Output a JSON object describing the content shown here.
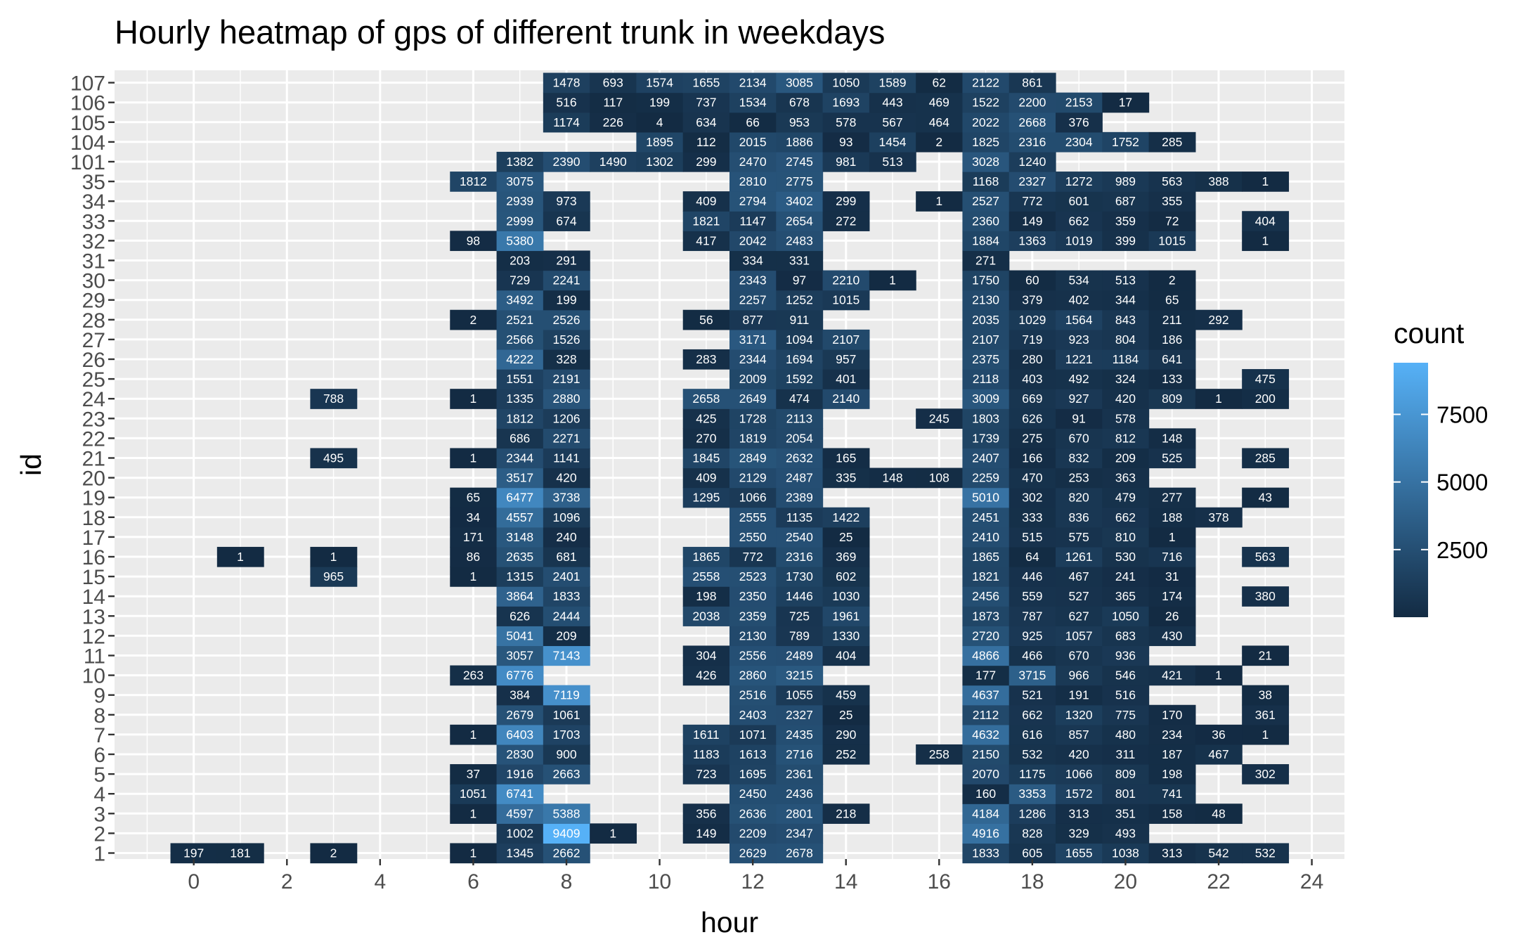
{
  "chart_data": {
    "type": "heatmap",
    "title": "Hourly heatmap of gps of different trunk in weekdays",
    "xlabel": "hour",
    "ylabel": "id",
    "x_ticks": [
      0,
      2,
      4,
      6,
      8,
      10,
      12,
      14,
      16,
      18,
      20,
      22,
      24
    ],
    "xlim": [
      -1.7,
      24.7
    ],
    "y_categories": [
      "1",
      "2",
      "3",
      "4",
      "5",
      "6",
      "7",
      "8",
      "9",
      "10",
      "11",
      "12",
      "13",
      "14",
      "15",
      "16",
      "17",
      "18",
      "19",
      "20",
      "21",
      "22",
      "23",
      "24",
      "25",
      "26",
      "27",
      "28",
      "29",
      "30",
      "31",
      "32",
      "33",
      "34",
      "35",
      "101",
      "104",
      "105",
      "106",
      "107"
    ],
    "legend": {
      "title": "count",
      "placement": "right",
      "breaks": [
        2500,
        5000,
        7500
      ],
      "range": [
        1,
        9409
      ],
      "low_color": "#132B43",
      "high_color": "#56B1F7"
    },
    "panel_background": "#EBEBEB",
    "grid": true,
    "rows": {
      "1": {
        "0": 197,
        "1": 181,
        "3": 2,
        "6": 1,
        "7": 1345,
        "8": 2662,
        "12": 2629,
        "13": 2678,
        "17": 1833,
        "18": 605,
        "19": 1655,
        "20": 1038,
        "21": 313,
        "22": 542,
        "23": 532
      },
      "2": {
        "7": 1002,
        "8": 9409,
        "9": 1,
        "11": 149,
        "12": 2209,
        "13": 2347,
        "17": 4916,
        "18": 828,
        "19": 329,
        "20": 493
      },
      "3": {
        "6": 1,
        "7": 4597,
        "8": 5388,
        "11": 356,
        "12": 2636,
        "13": 2801,
        "14": 218,
        "17": 4184,
        "18": 1286,
        "19": 313,
        "20": 351,
        "21": 158,
        "22": 48
      },
      "4": {
        "6": 1051,
        "7": 6741,
        "12": 2450,
        "13": 2436,
        "17": 160,
        "18": 3353,
        "19": 1572,
        "20": 801,
        "21": 741
      },
      "5": {
        "6": 37,
        "7": 1916,
        "8": 2663,
        "11": 723,
        "12": 1695,
        "13": 2361,
        "17": 2070,
        "18": 1175,
        "19": 1066,
        "20": 809,
        "21": 198,
        "23": 302
      },
      "6": {
        "7": 2830,
        "8": 900,
        "11": 1183,
        "12": 1613,
        "13": 2716,
        "14": 252,
        "16": 258,
        "17": 2150,
        "18": 532,
        "19": 420,
        "20": 311,
        "21": 187,
        "22": 467
      },
      "7": {
        "6": 1,
        "7": 6403,
        "8": 1703,
        "11": 1611,
        "12": 1071,
        "13": 2435,
        "14": 290,
        "17": 4632,
        "18": 616,
        "19": 857,
        "20": 480,
        "21": 234,
        "22": 36,
        "23": 1
      },
      "8": {
        "7": 2679,
        "8": 1061,
        "12": 2403,
        "13": 2327,
        "14": 25,
        "17": 2112,
        "18": 662,
        "19": 1320,
        "20": 775,
        "21": 170,
        "23": 361
      },
      "9": {
        "7": 384,
        "8": 7119,
        "12": 2516,
        "13": 1055,
        "14": 459,
        "17": 4637,
        "18": 521,
        "19": 191,
        "20": 516,
        "23": 38
      },
      "10": {
        "6": 263,
        "7": 6776,
        "11": 426,
        "12": 2860,
        "13": 3215,
        "17": 177,
        "18": 3715,
        "19": 966,
        "20": 546,
        "21": 421,
        "22": 1
      },
      "11": {
        "7": 3057,
        "8": 7143,
        "11": 304,
        "12": 2556,
        "13": 2489,
        "14": 404,
        "17": 4866,
        "18": 466,
        "19": 670,
        "20": 936,
        "23": 21
      },
      "12": {
        "7": 5041,
        "8": 209,
        "12": 2130,
        "13": 789,
        "14": 1330,
        "17": 2720,
        "18": 925,
        "19": 1057,
        "20": 683,
        "21": 430
      },
      "13": {
        "7": 626,
        "8": 2444,
        "11": 2038,
        "12": 2359,
        "13": 725,
        "14": 1961,
        "17": 1873,
        "18": 787,
        "19": 627,
        "20": 1050,
        "21": 26
      },
      "14": {
        "7": 3864,
        "8": 1833,
        "11": 198,
        "12": 2350,
        "13": 1446,
        "14": 1030,
        "17": 2456,
        "18": 559,
        "19": 527,
        "20": 365,
        "21": 174,
        "23": 380
      },
      "15": {
        "3": 965,
        "6": 1,
        "7": 1315,
        "8": 2401,
        "11": 2558,
        "12": 2523,
        "13": 1730,
        "14": 602,
        "17": 1821,
        "18": 446,
        "19": 467,
        "20": 241,
        "21": 31
      },
      "16": {
        "1": 1,
        "3": 1,
        "6": 86,
        "7": 2635,
        "8": 681,
        "11": 1865,
        "12": 772,
        "13": 2316,
        "14": 369,
        "17": 1865,
        "18": 64,
        "19": 1261,
        "20": 530,
        "21": 716,
        "23": 563
      },
      "17": {
        "6": 171,
        "7": 3148,
        "8": 240,
        "12": 2550,
        "13": 2540,
        "14": 25,
        "17": 2410,
        "18": 515,
        "19": 575,
        "20": 810,
        "21": 1
      },
      "18": {
        "6": 34,
        "7": 4557,
        "8": 1096,
        "12": 2555,
        "13": 1135,
        "14": 1422,
        "17": 2451,
        "18": 333,
        "19": 836,
        "20": 662,
        "21": 188,
        "22": 378
      },
      "19": {
        "6": 65,
        "7": 6477,
        "8": 3738,
        "11": 1295,
        "12": 1066,
        "13": 2389,
        "17": 5010,
        "18": 302,
        "19": 820,
        "20": 479,
        "21": 277,
        "23": 43
      },
      "20": {
        "7": 3517,
        "8": 420,
        "11": 409,
        "12": 2129,
        "13": 2487,
        "14": 335,
        "15": 148,
        "16": 108,
        "17": 2259,
        "18": 470,
        "19": 253,
        "20": 363
      },
      "21": {
        "3": 495,
        "6": 1,
        "7": 2344,
        "8": 1141,
        "11": 1845,
        "12": 2849,
        "13": 2632,
        "14": 165,
        "17": 2407,
        "18": 166,
        "19": 832,
        "20": 209,
        "21": 525,
        "23": 285
      },
      "22": {
        "7": 686,
        "8": 2271,
        "11": 270,
        "12": 1819,
        "13": 2054,
        "17": 1739,
        "18": 275,
        "19": 670,
        "20": 812,
        "21": 148
      },
      "23": {
        "7": 1812,
        "8": 1206,
        "11": 425,
        "12": 1728,
        "13": 2113,
        "16": 245,
        "17": 1803,
        "18": 626,
        "19": 91,
        "20": 578
      },
      "24": {
        "3": 788,
        "6": 1,
        "7": 1335,
        "8": 2880,
        "11": 2658,
        "12": 2649,
        "13": 474,
        "14": 2140,
        "17": 3009,
        "18": 669,
        "19": 927,
        "20": 420,
        "21": 809,
        "22": 1,
        "23": 200
      },
      "25": {
        "7": 1551,
        "8": 2191,
        "12": 2009,
        "13": 1592,
        "14": 401,
        "17": 2118,
        "18": 403,
        "19": 492,
        "20": 324,
        "21": 133,
        "23": 475
      },
      "26": {
        "7": 4222,
        "8": 328,
        "11": 283,
        "12": 2344,
        "13": 1694,
        "14": 957,
        "17": 2375,
        "18": 280,
        "19": 1221,
        "20": 1184,
        "21": 641
      },
      "27": {
        "7": 2566,
        "8": 1526,
        "12": 3171,
        "13": 1094,
        "14": 2107,
        "17": 2107,
        "18": 719,
        "19": 923,
        "20": 804,
        "21": 186
      },
      "28": {
        "6": 2,
        "7": 2521,
        "8": 2526,
        "11": 56,
        "12": 877,
        "13": 911,
        "17": 2035,
        "18": 1029,
        "19": 1564,
        "20": 843,
        "21": 211,
        "22": 292
      },
      "29": {
        "7": 3492,
        "8": 199,
        "12": 2257,
        "13": 1252,
        "14": 1015,
        "17": 2130,
        "18": 379,
        "19": 402,
        "20": 344,
        "21": 65
      },
      "30": {
        "7": 729,
        "8": 2241,
        "12": 2343,
        "13": 97,
        "14": 2210,
        "15": 1,
        "17": 1750,
        "18": 60,
        "19": 534,
        "20": 513,
        "21": 2
      },
      "31": {
        "7": 203,
        "8": 291,
        "12": 334,
        "13": 331,
        "17": 271
      },
      "32": {
        "6": 98,
        "7": 5380,
        "11": 417,
        "12": 2042,
        "13": 2483,
        "17": 1884,
        "18": 1363,
        "19": 1019,
        "20": 399,
        "21": 1015,
        "23": 1
      },
      "33": {
        "7": 2999,
        "8": 674,
        "11": 1821,
        "12": 1147,
        "13": 2654,
        "14": 272,
        "17": 2360,
        "18": 149,
        "19": 662,
        "20": 359,
        "21": 72,
        "23": 404
      },
      "34": {
        "7": 2939,
        "8": 973,
        "11": 409,
        "12": 2794,
        "13": 3402,
        "14": 299,
        "16": 1,
        "17": 2527,
        "18": 772,
        "19": 601,
        "20": 687,
        "21": 355
      },
      "35": {
        "6": 1812,
        "7": 3075,
        "12": 2810,
        "13": 2775,
        "17": 1168,
        "18": 2327,
        "19": 1272,
        "20": 989,
        "21": 563,
        "22": 388,
        "23": 1
      },
      "101": {
        "7": 1382,
        "8": 2390,
        "9": 1490,
        "10": 1302,
        "11": 299,
        "12": 2470,
        "13": 2745,
        "14": 981,
        "15": 513,
        "17": 3028,
        "18": 1240
      },
      "104": {
        "10": 1895,
        "11": 112,
        "12": 2015,
        "13": 1886,
        "14": 93,
        "15": 1454,
        "16": 2,
        "17": 1825,
        "18": 2316,
        "19": 2304,
        "20": 1752,
        "21": 285
      },
      "105": {
        "8": 1174,
        "9": 226,
        "10": 4,
        "11": 634,
        "12": 66,
        "13": 953,
        "14": 578,
        "15": 567,
        "16": 464,
        "17": 2022,
        "18": 2668,
        "19": 376
      },
      "106": {
        "8": 516,
        "9": 117,
        "10": 199,
        "11": 737,
        "12": 1534,
        "13": 678,
        "14": 1693,
        "15": 443,
        "16": 469,
        "17": 1522,
        "18": 2200,
        "19": 2153,
        "20": 17
      },
      "107": {
        "8": 1478,
        "9": 693,
        "10": 1574,
        "11": 1655,
        "12": 2134,
        "13": 3085,
        "14": 1050,
        "15": 1589,
        "16": 62,
        "17": 2122,
        "18": 861
      }
    }
  }
}
